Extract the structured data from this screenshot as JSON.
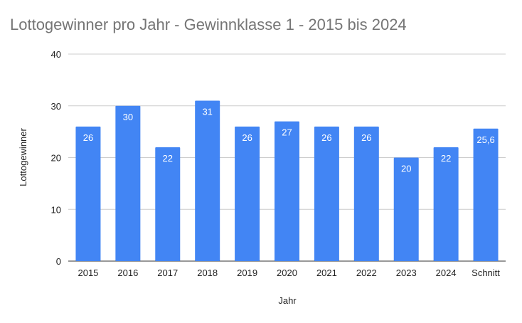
{
  "chart_data": {
    "type": "bar",
    "title": "Lottogewinner pro Jahr - Gewinnklasse 1 - 2015 bis 2024",
    "xlabel": "Jahr",
    "ylabel": "Lottogewinner",
    "categories": [
      "2015",
      "2016",
      "2017",
      "2018",
      "2019",
      "2020",
      "2021",
      "2022",
      "2023",
      "2024",
      "Schnitt"
    ],
    "values": [
      26,
      30,
      22,
      31,
      26,
      27,
      26,
      26,
      20,
      22,
      25.6
    ],
    "data_labels": [
      "26",
      "30",
      "22",
      "31",
      "26",
      "27",
      "26",
      "26",
      "20",
      "22",
      "25,6"
    ],
    "ylim": [
      0,
      40
    ],
    "yticks": [
      0,
      10,
      20,
      30,
      40
    ],
    "ytick_labels": [
      "0",
      "10",
      "20",
      "30",
      "40"
    ],
    "grid": true,
    "legend": false,
    "bar_color": "#4285f4",
    "grid_color": "#cccccc",
    "title_color": "#757575"
  }
}
